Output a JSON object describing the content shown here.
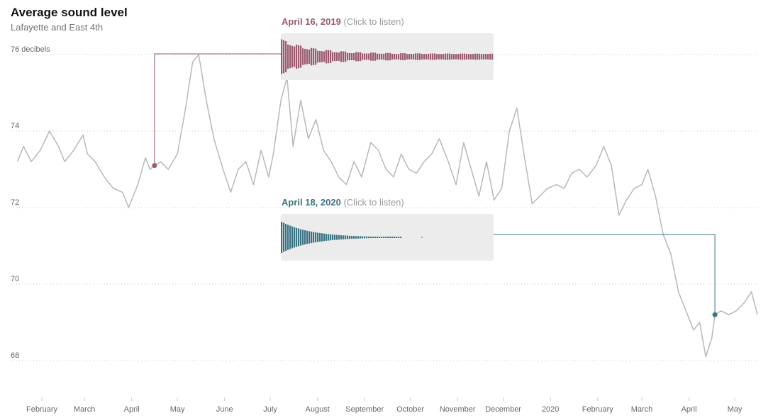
{
  "title": "Average sound level",
  "subtitle": "Lafayette and East 4th",
  "clips": [
    {
      "date": "April 16, 2019",
      "hint": "(Click to listen)",
      "color": "#9a5b6f"
    },
    {
      "date": "April 18, 2020",
      "hint": "(Click to listen)",
      "color": "#3b7483"
    }
  ],
  "chart_data": {
    "type": "line",
    "title": "Average sound level",
    "subtitle": "Lafayette and East 4th",
    "ylabel": "",
    "ylim": [
      67,
      77
    ],
    "yticks": [
      {
        "value": 76,
        "label": "76 decibels"
      },
      {
        "value": 74,
        "label": "74"
      },
      {
        "value": 72,
        "label": "72"
      },
      {
        "value": 70,
        "label": "70"
      },
      {
        "value": 68,
        "label": "68"
      }
    ],
    "xticks": [
      "February",
      "March",
      "April",
      "May",
      "June",
      "July",
      "August",
      "September",
      "October",
      "November",
      "December",
      "2020",
      "February",
      "March",
      "April",
      "May"
    ],
    "grid": "horizontal dotted",
    "line_color": "#b8b8b8",
    "series": [
      {
        "x": [
          "2019-01-16",
          "2019-01-20",
          "2019-01-25",
          "2019-01-31",
          "2019-02-06",
          "2019-02-12",
          "2019-02-16",
          "2019-02-22",
          "2019-02-28",
          "2019-03-03",
          "2019-03-08",
          "2019-03-14",
          "2019-03-20",
          "2019-03-26",
          "2019-03-30",
          "2019-04-05",
          "2019-04-10",
          "2019-04-13",
          "2019-04-16",
          "2019-04-20",
          "2019-04-25",
          "2019-05-01",
          "2019-05-06",
          "2019-05-11",
          "2019-05-15",
          "2019-05-20",
          "2019-05-25",
          "2019-05-31",
          "2019-06-05",
          "2019-06-10",
          "2019-06-15",
          "2019-06-20",
          "2019-06-25",
          "2019-06-30",
          "2019-07-03",
          "2019-07-08",
          "2019-07-12",
          "2019-07-16",
          "2019-07-21",
          "2019-07-26",
          "2019-07-31",
          "2019-08-05",
          "2019-08-10",
          "2019-08-15",
          "2019-08-20",
          "2019-08-25",
          "2019-08-30",
          "2019-09-05",
          "2019-09-10",
          "2019-09-15",
          "2019-09-20",
          "2019-09-25",
          "2019-09-30",
          "2019-10-05",
          "2019-10-10",
          "2019-10-15",
          "2019-10-20",
          "2019-10-25",
          "2019-10-31",
          "2019-11-05",
          "2019-11-10",
          "2019-11-15",
          "2019-11-20",
          "2019-11-25",
          "2019-11-30",
          "2019-12-05",
          "2019-12-10",
          "2019-12-15",
          "2019-12-20",
          "2019-12-25",
          "2019-12-30",
          "2020-01-05",
          "2020-01-10",
          "2020-01-15",
          "2020-01-20",
          "2020-01-25",
          "2020-01-31",
          "2020-02-05",
          "2020-02-10",
          "2020-02-15",
          "2020-02-20",
          "2020-02-25",
          "2020-03-01",
          "2020-03-05",
          "2020-03-10",
          "2020-03-15",
          "2020-03-20",
          "2020-03-25",
          "2020-03-30",
          "2020-04-04",
          "2020-04-08",
          "2020-04-12",
          "2020-04-16",
          "2020-04-18",
          "2020-04-22",
          "2020-04-27",
          "2020-05-02",
          "2020-05-07",
          "2020-05-12",
          "2020-05-16"
        ],
        "y": [
          73.2,
          73.6,
          73.2,
          73.5,
          74.0,
          73.6,
          73.2,
          73.5,
          73.9,
          73.4,
          73.2,
          72.8,
          72.5,
          72.4,
          72.0,
          72.6,
          73.3,
          73.0,
          73.1,
          73.2,
          73.0,
          73.4,
          74.5,
          75.8,
          76.0,
          74.8,
          73.8,
          73.0,
          72.4,
          73.0,
          73.2,
          72.6,
          73.5,
          72.8,
          73.4,
          74.8,
          75.4,
          73.6,
          74.8,
          73.8,
          74.3,
          73.5,
          73.2,
          72.8,
          72.6,
          73.2,
          72.8,
          73.7,
          73.5,
          73.0,
          72.8,
          73.4,
          73.0,
          72.9,
          73.2,
          73.4,
          73.8,
          73.3,
          72.6,
          73.7,
          73.0,
          72.3,
          73.2,
          72.2,
          72.5,
          74.0,
          74.6,
          73.3,
          72.1,
          72.3,
          72.5,
          72.6,
          72.5,
          72.9,
          73.0,
          72.8,
          73.1,
          73.6,
          73.1,
          71.8,
          72.2,
          72.5,
          72.6,
          73.0,
          72.3,
          71.3,
          70.8,
          69.8,
          69.3,
          68.8,
          69.0,
          68.1,
          68.6,
          69.2,
          69.3,
          69.2,
          69.3,
          69.5,
          69.8,
          69.2
        ]
      }
    ]
  }
}
